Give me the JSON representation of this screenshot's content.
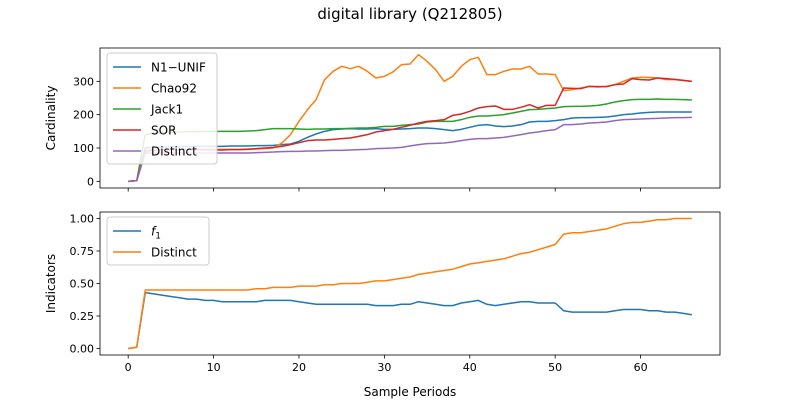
{
  "figure": {
    "title": "digital library (Q212805)"
  },
  "chart_data": [
    {
      "type": "line",
      "ylabel": "Cardinality",
      "xlabel": "",
      "xlim": [
        -3.3,
        69.3
      ],
      "ylim": [
        -20,
        400
      ],
      "xticks": [
        0,
        10,
        20,
        30,
        40,
        50,
        60
      ],
      "yticks": [
        0,
        100,
        200,
        300
      ],
      "grid": false,
      "legend_position": "upper-left",
      "series": [
        {
          "name": "N1−UNIF",
          "color": "#1f77b4",
          "x": [
            0,
            1,
            2,
            3,
            4,
            5,
            6,
            7,
            8,
            9,
            10,
            11,
            12,
            13,
            14,
            15,
            16,
            17,
            18,
            19,
            20,
            21,
            22,
            23,
            24,
            25,
            26,
            27,
            28,
            29,
            30,
            31,
            32,
            33,
            34,
            35,
            36,
            37,
            38,
            39,
            40,
            41,
            42,
            43,
            44,
            45,
            46,
            47,
            48,
            49,
            50,
            51,
            52,
            53,
            54,
            55,
            56,
            57,
            58,
            59,
            60,
            61,
            62,
            63,
            64,
            65,
            66
          ],
          "values": [
            0,
            2,
            100,
            102,
            103,
            103,
            104,
            104,
            105,
            105,
            105,
            105,
            106,
            106,
            106,
            107,
            107,
            108,
            110,
            112,
            120,
            132,
            142,
            150,
            155,
            157,
            158,
            157,
            157,
            158,
            156,
            156,
            157,
            158,
            160,
            160,
            158,
            155,
            152,
            156,
            162,
            168,
            170,
            166,
            164,
            166,
            170,
            178,
            180,
            180,
            182,
            185,
            190,
            191,
            191,
            192,
            193,
            196,
            200,
            202,
            205,
            207,
            208,
            208,
            208,
            208,
            208
          ]
        },
        {
          "name": "Chao92",
          "color": "#ff7f0e",
          "x": [
            0,
            1,
            2,
            3,
            4,
            5,
            6,
            7,
            8,
            9,
            10,
            11,
            12,
            13,
            14,
            15,
            16,
            17,
            18,
            19,
            20,
            21,
            22,
            23,
            24,
            25,
            26,
            27,
            28,
            29,
            30,
            31,
            32,
            33,
            34,
            35,
            36,
            37,
            38,
            39,
            40,
            41,
            42,
            43,
            44,
            45,
            46,
            47,
            48,
            49,
            50,
            51,
            52,
            53,
            54,
            55,
            56,
            57,
            58,
            59,
            60,
            61,
            62,
            63,
            64,
            65,
            66
          ],
          "values": [
            0,
            2,
            88,
            92,
            94,
            95,
            95,
            96,
            96,
            96,
            96,
            96,
            96,
            96,
            97,
            97,
            98,
            100,
            115,
            140,
            180,
            215,
            245,
            305,
            330,
            345,
            338,
            345,
            330,
            310,
            315,
            328,
            350,
            352,
            380,
            360,
            335,
            300,
            315,
            345,
            365,
            372,
            320,
            320,
            330,
            337,
            337,
            345,
            322,
            322,
            320,
            272,
            275,
            280,
            285,
            283,
            285,
            290,
            300,
            310,
            312,
            312,
            310,
            305,
            305,
            303,
            300
          ]
        },
        {
          "name": "Jack1",
          "color": "#2ca02c",
          "x": [
            0,
            1,
            2,
            3,
            4,
            5,
            6,
            7,
            8,
            9,
            10,
            11,
            12,
            13,
            14,
            15,
            16,
            17,
            18,
            19,
            20,
            21,
            22,
            23,
            24,
            25,
            26,
            27,
            28,
            29,
            30,
            31,
            32,
            33,
            34,
            35,
            36,
            37,
            38,
            39,
            40,
            41,
            42,
            43,
            44,
            45,
            46,
            47,
            48,
            49,
            50,
            51,
            52,
            53,
            54,
            55,
            56,
            57,
            58,
            59,
            60,
            61,
            62,
            63,
            64,
            65,
            66
          ],
          "values": [
            0,
            2,
            140,
            145,
            147,
            148,
            148,
            149,
            149,
            150,
            150,
            150,
            150,
            150,
            151,
            152,
            155,
            158,
            158,
            158,
            157,
            156,
            157,
            157,
            158,
            158,
            159,
            160,
            160,
            162,
            165,
            165,
            168,
            170,
            172,
            178,
            180,
            180,
            180,
            185,
            192,
            196,
            196,
            198,
            200,
            205,
            210,
            215,
            216,
            218,
            220,
            224,
            225,
            225,
            226,
            228,
            232,
            238,
            242,
            245,
            246,
            246,
            247,
            246,
            246,
            245,
            244
          ]
        },
        {
          "name": "SOR",
          "color": "#d62728",
          "x": [
            0,
            1,
            2,
            3,
            4,
            5,
            6,
            7,
            8,
            9,
            10,
            11,
            12,
            13,
            14,
            15,
            16,
            17,
            18,
            19,
            20,
            21,
            22,
            23,
            24,
            25,
            26,
            27,
            28,
            29,
            30,
            31,
            32,
            33,
            34,
            35,
            36,
            37,
            38,
            39,
            40,
            41,
            42,
            43,
            44,
            45,
            46,
            47,
            48,
            49,
            50,
            51,
            52,
            53,
            54,
            55,
            56,
            57,
            58,
            59,
            60,
            61,
            62,
            63,
            64,
            65,
            66
          ],
          "values": [
            0,
            2,
            92,
            94,
            94,
            95,
            95,
            95,
            95,
            95,
            94,
            94,
            95,
            95,
            96,
            98,
            100,
            102,
            105,
            110,
            116,
            122,
            124,
            124,
            126,
            128,
            130,
            135,
            140,
            148,
            152,
            156,
            162,
            168,
            175,
            180,
            182,
            185,
            198,
            202,
            210,
            220,
            224,
            226,
            216,
            216,
            222,
            230,
            220,
            228,
            228,
            280,
            279,
            278,
            285,
            284,
            284,
            290,
            292,
            308,
            305,
            304,
            310,
            308,
            306,
            303,
            300
          ]
        },
        {
          "name": "Distinct",
          "color": "#9467bd",
          "x": [
            0,
            1,
            2,
            3,
            4,
            5,
            6,
            7,
            8,
            9,
            10,
            11,
            12,
            13,
            14,
            15,
            16,
            17,
            18,
            19,
            20,
            21,
            22,
            23,
            24,
            25,
            26,
            27,
            28,
            29,
            30,
            31,
            32,
            33,
            34,
            35,
            36,
            37,
            38,
            39,
            40,
            41,
            42,
            43,
            44,
            45,
            46,
            47,
            48,
            49,
            50,
            51,
            52,
            53,
            54,
            55,
            56,
            57,
            58,
            59,
            60,
            61,
            62,
            63,
            64,
            65,
            66
          ],
          "values": [
            0,
            2,
            85,
            85,
            85,
            85,
            85,
            85,
            85,
            85,
            85,
            85,
            85,
            85,
            85,
            86,
            87,
            88,
            89,
            90,
            90,
            91,
            91,
            92,
            93,
            93,
            94,
            95,
            96,
            98,
            99,
            100,
            102,
            106,
            110,
            113,
            114,
            115,
            118,
            122,
            126,
            128,
            128,
            130,
            132,
            136,
            140,
            145,
            148,
            152,
            155,
            170,
            170,
            172,
            175,
            176,
            178,
            182,
            185,
            186,
            187,
            188,
            189,
            190,
            191,
            191,
            192
          ]
        }
      ]
    },
    {
      "type": "line",
      "ylabel": "Indicators",
      "xlabel": "Sample Periods",
      "xlim": [
        -3.3,
        69.3
      ],
      "ylim": [
        -0.05,
        1.05
      ],
      "xticks": [
        0,
        10,
        20,
        30,
        40,
        50,
        60
      ],
      "yticks": [
        0.0,
        0.25,
        0.5,
        0.75,
        1.0
      ],
      "ytick_labels": [
        "0.00",
        "0.25",
        "0.50",
        "0.75",
        "1.00"
      ],
      "grid": false,
      "legend_position": "upper-left",
      "series": [
        {
          "name": "f1",
          "color": "#1f77b4",
          "x": [
            0,
            1,
            2,
            3,
            4,
            5,
            6,
            7,
            8,
            9,
            10,
            11,
            12,
            13,
            14,
            15,
            16,
            17,
            18,
            19,
            20,
            21,
            22,
            23,
            24,
            25,
            26,
            27,
            28,
            29,
            30,
            31,
            32,
            33,
            34,
            35,
            36,
            37,
            38,
            39,
            40,
            41,
            42,
            43,
            44,
            45,
            46,
            47,
            48,
            49,
            50,
            51,
            52,
            53,
            54,
            55,
            56,
            57,
            58,
            59,
            60,
            61,
            62,
            63,
            64,
            65,
            66
          ],
          "values": [
            0.0,
            0.01,
            0.43,
            0.42,
            0.41,
            0.4,
            0.39,
            0.38,
            0.38,
            0.37,
            0.37,
            0.36,
            0.36,
            0.36,
            0.36,
            0.36,
            0.37,
            0.37,
            0.37,
            0.37,
            0.36,
            0.35,
            0.34,
            0.34,
            0.34,
            0.34,
            0.34,
            0.34,
            0.34,
            0.33,
            0.33,
            0.33,
            0.34,
            0.34,
            0.36,
            0.35,
            0.34,
            0.33,
            0.33,
            0.35,
            0.36,
            0.37,
            0.34,
            0.33,
            0.34,
            0.35,
            0.36,
            0.36,
            0.35,
            0.35,
            0.35,
            0.29,
            0.28,
            0.28,
            0.28,
            0.28,
            0.28,
            0.29,
            0.3,
            0.3,
            0.3,
            0.29,
            0.29,
            0.28,
            0.28,
            0.27,
            0.26
          ]
        },
        {
          "name": "Distinct",
          "color": "#ff7f0e",
          "x": [
            0,
            1,
            2,
            3,
            4,
            5,
            6,
            7,
            8,
            9,
            10,
            11,
            12,
            13,
            14,
            15,
            16,
            17,
            18,
            19,
            20,
            21,
            22,
            23,
            24,
            25,
            26,
            27,
            28,
            29,
            30,
            31,
            32,
            33,
            34,
            35,
            36,
            37,
            38,
            39,
            40,
            41,
            42,
            43,
            44,
            45,
            46,
            47,
            48,
            49,
            50,
            51,
            52,
            53,
            54,
            55,
            56,
            57,
            58,
            59,
            60,
            61,
            62,
            63,
            64,
            65,
            66
          ],
          "values": [
            0.0,
            0.01,
            0.45,
            0.45,
            0.45,
            0.45,
            0.45,
            0.45,
            0.45,
            0.45,
            0.45,
            0.45,
            0.45,
            0.45,
            0.45,
            0.46,
            0.46,
            0.47,
            0.47,
            0.47,
            0.48,
            0.48,
            0.48,
            0.49,
            0.49,
            0.5,
            0.5,
            0.5,
            0.51,
            0.52,
            0.52,
            0.53,
            0.54,
            0.55,
            0.57,
            0.58,
            0.59,
            0.6,
            0.61,
            0.63,
            0.65,
            0.66,
            0.67,
            0.68,
            0.69,
            0.71,
            0.73,
            0.74,
            0.76,
            0.78,
            0.8,
            0.88,
            0.89,
            0.89,
            0.9,
            0.91,
            0.92,
            0.94,
            0.96,
            0.97,
            0.97,
            0.98,
            0.99,
            0.99,
            1.0,
            1.0,
            1.0
          ]
        }
      ]
    }
  ]
}
